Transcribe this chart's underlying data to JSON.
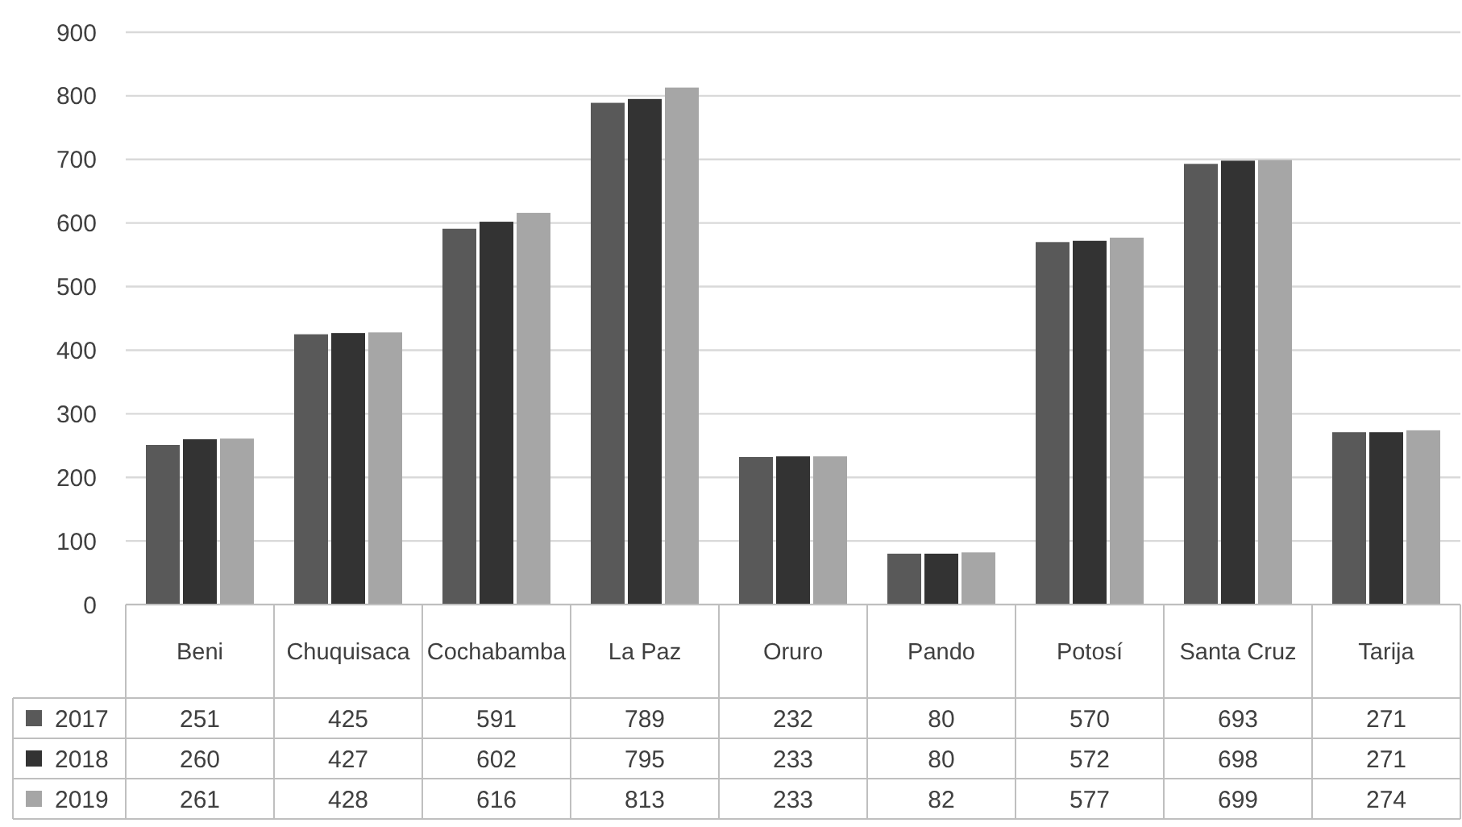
{
  "chart_data": {
    "type": "bar",
    "categories": [
      "Beni",
      "Chuquisaca",
      "Cochabamba",
      "La Paz",
      "Oruro",
      "Pando",
      "Potosí",
      "Santa Cruz",
      "Tarija"
    ],
    "series": [
      {
        "name": "2017",
        "color": "#595959",
        "values": [
          251,
          425,
          591,
          789,
          232,
          80,
          570,
          693,
          271
        ]
      },
      {
        "name": "2018",
        "color": "#333333",
        "values": [
          260,
          427,
          602,
          795,
          233,
          80,
          572,
          698,
          271
        ]
      },
      {
        "name": "2019",
        "color": "#a6a6a6",
        "values": [
          261,
          428,
          616,
          813,
          233,
          82,
          577,
          699,
          274
        ]
      }
    ],
    "ylim": [
      0,
      900
    ],
    "yticks": [
      0,
      100,
      200,
      300,
      400,
      500,
      600,
      700,
      800,
      900
    ],
    "grid": "y",
    "legend": "bottom",
    "data_labels": true
  }
}
